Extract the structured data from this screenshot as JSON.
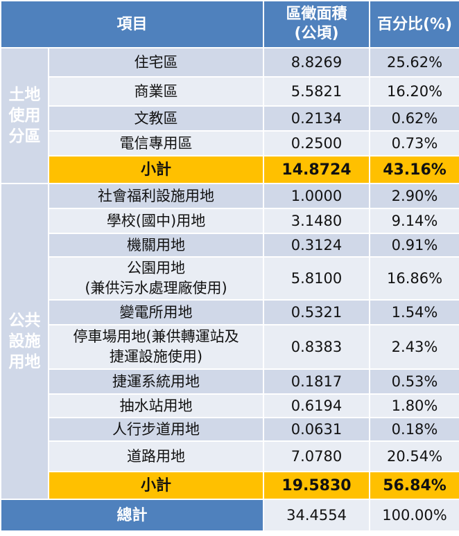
{
  "header": {
    "item": "項目",
    "area": "區徵面積\n(公頃)",
    "percent": "百分比(%)"
  },
  "groups": {
    "land_use": "土地\n使用\n分區",
    "public_facility": "公共\n設施\n用地"
  },
  "land_use_rows": [
    {
      "name": "住宅區",
      "area": "8.8269",
      "percent": "25.62%"
    },
    {
      "name": "商業區",
      "area": "5.5821",
      "percent": "16.20%"
    },
    {
      "name": "文教區",
      "area": "0.2134",
      "percent": "0.62%"
    },
    {
      "name": "電信專用區",
      "area": "0.2500",
      "percent": "0.73%"
    }
  ],
  "land_use_subtotal": {
    "name": "小計",
    "area": "14.8724",
    "percent": "43.16%"
  },
  "public_rows": [
    {
      "name": "社會福利設施用地",
      "area": "1.0000",
      "percent": "2.90%"
    },
    {
      "name": "學校(國中)用地",
      "area": "3.1480",
      "percent": "9.14%"
    },
    {
      "name": "機關用地",
      "area": "0.3124",
      "percent": "0.91%"
    },
    {
      "name": "公園用地\n(兼供污水處理廠使用)",
      "area": "5.8100",
      "percent": "16.86%"
    },
    {
      "name": "變電所用地",
      "area": "0.5321",
      "percent": "1.54%"
    },
    {
      "name": "停車場用地(兼供轉運站及\n捷運設施使用)",
      "area": "0.8383",
      "percent": "2.43%"
    },
    {
      "name": "捷運系統用地",
      "area": "0.1817",
      "percent": "0.53%"
    },
    {
      "name": "抽水站用地",
      "area": "0.6194",
      "percent": "1.80%"
    },
    {
      "name": "人行步道用地",
      "area": "0.0631",
      "percent": "0.18%"
    },
    {
      "name": "道路用地",
      "area": "7.0780",
      "percent": "20.54%"
    }
  ],
  "public_subtotal": {
    "name": "小計",
    "area": "19.5830",
    "percent": "56.84%"
  },
  "total": {
    "name": "總計",
    "area": "34.4554",
    "percent": "100.00%"
  }
}
